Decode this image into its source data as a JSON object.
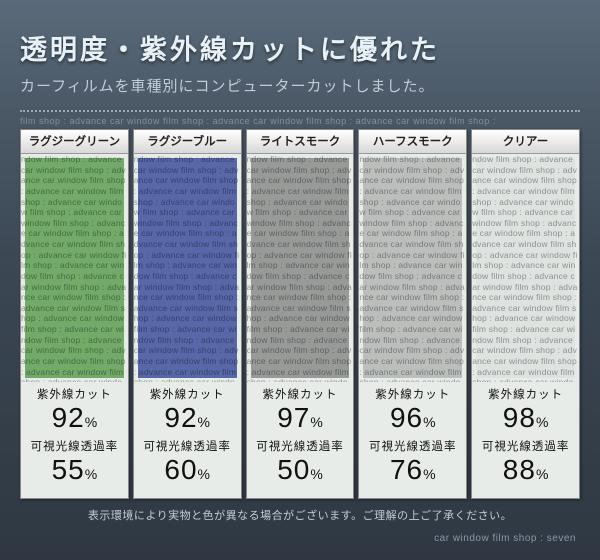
{
  "title": "透明度・紫外線カットに優れた",
  "subtitle": "カーフィルムを車種別にコンピューターカットしました。",
  "repeat_watermark": "film shop : advance car window film shop : advance car window film shop : advance car window film shop : ",
  "watermark_fill": "ndow film shop : advance car window film shop : advance car window film shop : advance car window film shop : advance car window film shop : advance car window film shop : advance car window film shop : advance car window film shop : advance car window film shop : advance car window film shop : advance car window film shop : advance car window film shop : advance car window film shop : advance car window film shop : advance car window film shop : advance car window film shop : advance car window film shop : advance car window film shop : advance car window film shop : advance car window film shop : advance car window film shop : advance car window film shop : ",
  "uv_label": "紫外線カット",
  "vlt_label": "可視光線透過率",
  "percent_symbol": "%",
  "products": [
    {
      "name": "ラグジーグリーン",
      "color": "#4a9c3a",
      "opacity": 0.72,
      "uv": "92",
      "vlt": "55"
    },
    {
      "name": "ラグジーブルー",
      "color": "#2a3ea0",
      "opacity": 0.75,
      "uv": "92",
      "vlt": "60"
    },
    {
      "name": "ライトスモーク",
      "color": "#6a6a6a",
      "opacity": 0.6,
      "uv": "97",
      "vlt": "50"
    },
    {
      "name": "ハーフスモーク",
      "color": "#8a8a8a",
      "opacity": 0.42,
      "uv": "96",
      "vlt": "76"
    },
    {
      "name": "クリアー",
      "color": "#cccccc",
      "opacity": 0.18,
      "uv": "98",
      "vlt": "88"
    }
  ],
  "disclaimer": "表示環境により実物と色が異なる場合がございます。ご理解の上ご了承ください。",
  "footer": "car window film shop : seven"
}
